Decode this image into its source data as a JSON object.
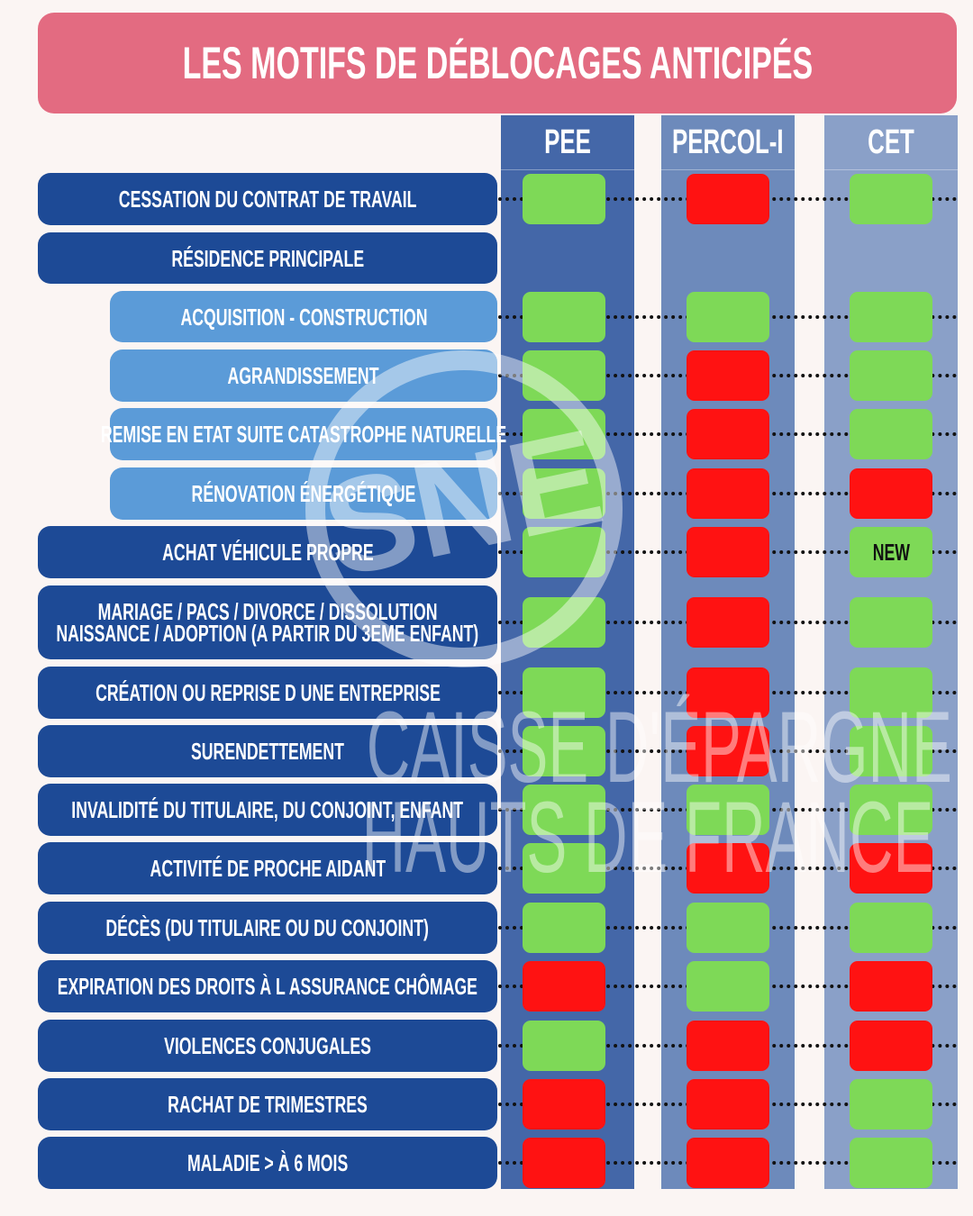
{
  "title": "LES MOTIFS DE DÉBLOCAGES ANTICIPÉS",
  "columns": [
    "PEE",
    "PERCOL-I",
    "CET"
  ],
  "colors": {
    "yes": "#7ed957",
    "no": "#ff1212",
    "row": "#1d4a96",
    "subrow": "#5b9bd8",
    "banner": "#e36b81"
  },
  "rows": [
    {
      "label": [
        "CESSATION DU CONTRAT DE TRAVAIL"
      ],
      "sub": false,
      "values": [
        "yes",
        "no",
        "yes"
      ]
    },
    {
      "label": [
        "RÉSIDENCE PRINCIPALE"
      ],
      "sub": false,
      "values": []
    },
    {
      "label": [
        "ACQUISITION - CONSTRUCTION"
      ],
      "sub": true,
      "values": [
        "yes",
        "yes",
        "yes"
      ]
    },
    {
      "label": [
        "AGRANDISSEMENT"
      ],
      "sub": true,
      "values": [
        "yes",
        "no",
        "yes"
      ]
    },
    {
      "label": [
        "REMISE EN ETAT SUITE CATASTROPHE NATURELLE"
      ],
      "sub": true,
      "values": [
        "yes",
        "no",
        "yes"
      ]
    },
    {
      "label": [
        "RÉNOVATION ÉNERGÉTIQUE"
      ],
      "sub": true,
      "values": [
        "yes",
        "no",
        "no"
      ]
    },
    {
      "label": [
        "ACHAT VÉHICULE PROPRE"
      ],
      "sub": false,
      "values": [
        "yes",
        "no",
        "new"
      ]
    },
    {
      "label": [
        "MARIAGE / PACS / DIVORCE / DISSOLUTION",
        "NAISSANCE / ADOPTION (A PARTIR DU 3EME ENFANT)"
      ],
      "sub": false,
      "values": [
        "yes",
        "no",
        "yes"
      ]
    },
    {
      "label": [
        "CRÉATION OU REPRISE D UNE ENTREPRISE"
      ],
      "sub": false,
      "values": [
        "yes",
        "no",
        "yes"
      ]
    },
    {
      "label": [
        "SURENDETTEMENT"
      ],
      "sub": false,
      "values": [
        "yes",
        "no",
        "yes"
      ]
    },
    {
      "label": [
        "INVALIDITÉ DU TITULAIRE, DU CONJOINT, ENFANT"
      ],
      "sub": false,
      "values": [
        "yes",
        "yes",
        "yes"
      ]
    },
    {
      "label": [
        "ACTIVITÉ DE PROCHE AIDANT"
      ],
      "sub": false,
      "values": [
        "yes",
        "no",
        "no"
      ]
    },
    {
      "label": [
        "DÉCÈS (DU TITULAIRE OU DU CONJOINT)"
      ],
      "sub": false,
      "values": [
        "yes",
        "yes",
        "yes"
      ]
    },
    {
      "label": [
        "EXPIRATION DES DROITS À L ASSURANCE CHÔMAGE"
      ],
      "sub": false,
      "values": [
        "no",
        "yes",
        "no"
      ]
    },
    {
      "label": [
        "VIOLENCES CONJUGALES"
      ],
      "sub": false,
      "values": [
        "yes",
        "no",
        "no"
      ]
    },
    {
      "label": [
        "RACHAT DE TRIMESTRES"
      ],
      "sub": false,
      "values": [
        "no",
        "no",
        "yes"
      ]
    },
    {
      "label": [
        "MALADIE > À 6 MOIS"
      ],
      "sub": false,
      "values": [
        "no",
        "no",
        "yes"
      ]
    }
  ],
  "new_badge": "NEW",
  "watermark": {
    "line1": "CAISSE D'ÉPARGNE",
    "line2": "HAUTS DE FRANCE",
    "logo_text": "SNE CGC"
  }
}
